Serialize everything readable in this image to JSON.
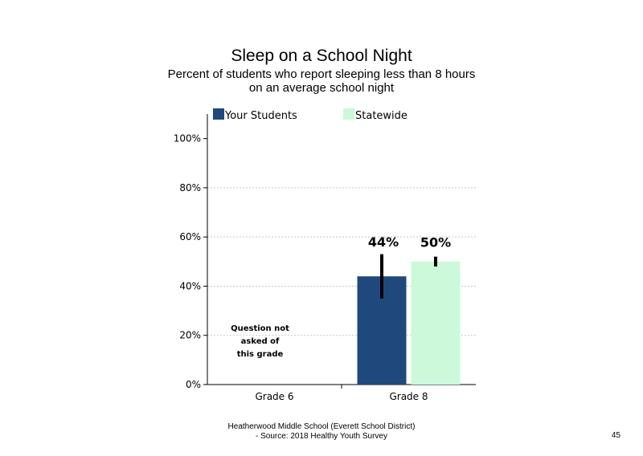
{
  "chart_data": {
    "type": "bar",
    "title": "Sleep on a School Night",
    "subtitle": [
      "Percent of students who report sleeping less than 8 hours",
      "on an average school night"
    ],
    "categories": [
      "Grade 6",
      "Grade 8"
    ],
    "series": [
      {
        "name": "Your Students",
        "color": "#1f497d",
        "values": [
          null,
          44
        ],
        "error_low": [
          null,
          35
        ],
        "error_high": [
          null,
          53
        ]
      },
      {
        "name": "Statewide",
        "color": "#ccf9d9",
        "values": [
          null,
          50
        ],
        "error_low": [
          null,
          48
        ],
        "error_high": [
          null,
          52
        ]
      }
    ],
    "data_labels": [
      "44%",
      "50%"
    ],
    "y_ticks": [
      "0%",
      "20%",
      "40%",
      "60%",
      "80%",
      "100%"
    ],
    "ylim": [
      0,
      110
    ],
    "grid": true,
    "legend_position": "top",
    "annotation": [
      "Question not",
      "asked of",
      "this grade"
    ]
  },
  "footer": {
    "line1": "Heatherwood Middle School (Everett School District)",
    "line2": "- Source: 2018 Healthy  Youth Survey"
  },
  "page_number": "45"
}
